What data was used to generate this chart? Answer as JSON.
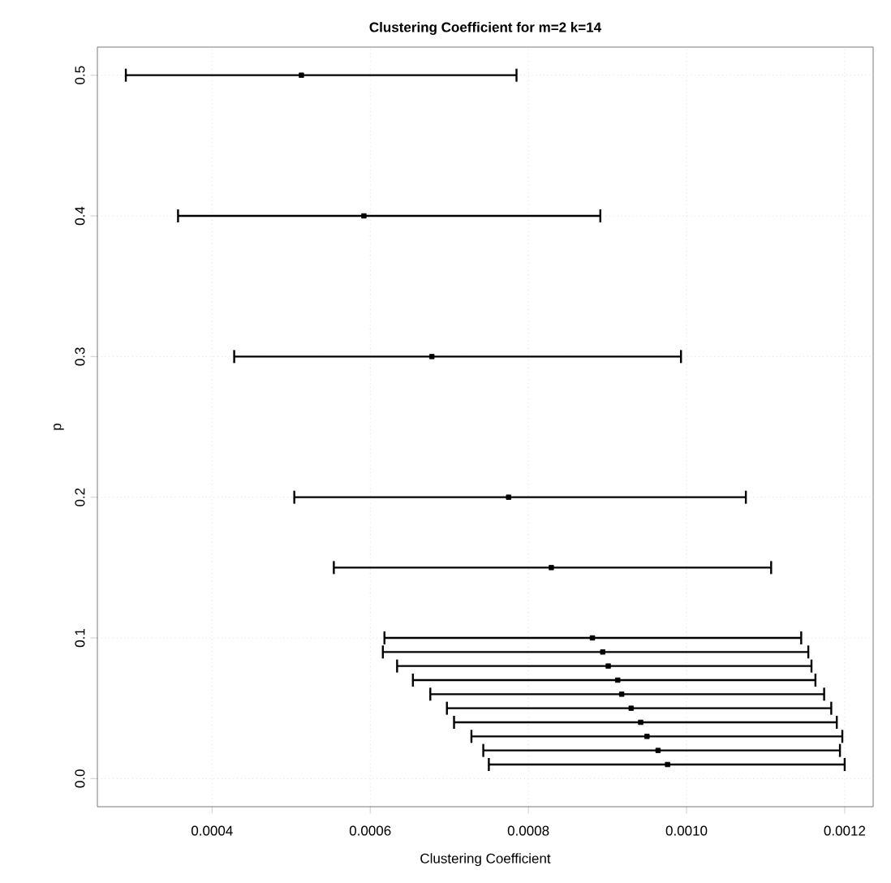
{
  "chart_data": {
    "type": "scatter",
    "title": "Clustering Coefficient for m=2 k=14",
    "xlabel": "Clustering Coefficient",
    "ylabel": "p",
    "x": [
      0.000513,
      0.000592,
      0.000678,
      0.000775,
      0.000829,
      0.000881,
      0.000894,
      0.000901,
      0.000913,
      0.000918,
      0.00093,
      0.000942,
      0.00095,
      0.000964,
      0.000976
    ],
    "values": [
      0.5,
      0.4,
      0.3,
      0.2,
      0.15,
      0.1,
      0.09,
      0.08,
      0.07,
      0.06,
      0.05,
      0.04,
      0.03,
      0.02,
      0.01
    ],
    "xerrors": [
      [
        0.000291,
        0.000785
      ],
      [
        0.000357,
        0.000891
      ],
      [
        0.000428,
        0.000993
      ],
      [
        0.000504,
        0.001075
      ],
      [
        0.000554,
        0.001107
      ],
      [
        0.000618,
        0.001145
      ],
      [
        0.000616,
        0.001154
      ],
      [
        0.000634,
        0.001158
      ],
      [
        0.000654,
        0.001163
      ],
      [
        0.000676,
        0.001174
      ],
      [
        0.000697,
        0.001183
      ],
      [
        0.000706,
        0.00119
      ],
      [
        0.000728,
        0.001197
      ],
      [
        0.000743,
        0.001194
      ],
      [
        0.00075,
        0.0012
      ]
    ],
    "color": "#000000",
    "marker": "square",
    "grid": true,
    "xlim": [
      0.000255,
      0.001236
    ],
    "ylim": [
      -0.02,
      0.52
    ],
    "xticks": [
      0.0004,
      0.0006,
      0.0008,
      {
        "value": 0.001,
        "label": "0.0010"
      },
      0.0012
    ],
    "yticks": [
      {
        "value": 0,
        "label": "0.0"
      },
      0.1,
      0.2,
      0.3,
      0.4,
      0.5
    ]
  }
}
